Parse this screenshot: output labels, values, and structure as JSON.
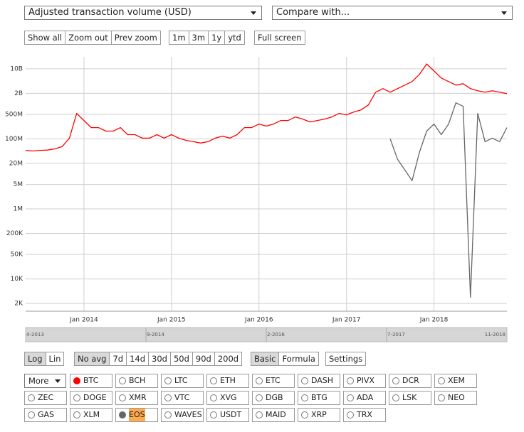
{
  "controls": {
    "metric": "Adjusted transaction volume (USD)",
    "compare": "Compare with...",
    "zoom": [
      "Show all",
      "Zoom out",
      "Prev zoom"
    ],
    "range": [
      "1m",
      "3m",
      "1y",
      "ytd"
    ],
    "fullscreen": "Full screen"
  },
  "chart_data": {
    "type": "line",
    "log_scale": true,
    "grid": true,
    "x": [
      "2013-05",
      "2013-06",
      "2013-07",
      "2013-08",
      "2013-09",
      "2013-10",
      "2013-11",
      "2013-12",
      "2014-01",
      "2014-02",
      "2014-03",
      "2014-04",
      "2014-05",
      "2014-06",
      "2014-07",
      "2014-08",
      "2014-09",
      "2014-10",
      "2014-11",
      "2014-12",
      "2015-01",
      "2015-02",
      "2015-03",
      "2015-04",
      "2015-05",
      "2015-06",
      "2015-07",
      "2015-08",
      "2015-09",
      "2015-10",
      "2015-11",
      "2015-12",
      "2016-01",
      "2016-02",
      "2016-03",
      "2016-04",
      "2016-05",
      "2016-06",
      "2016-07",
      "2016-08",
      "2016-09",
      "2016-10",
      "2016-11",
      "2016-12",
      "2017-01",
      "2017-02",
      "2017-03",
      "2017-04",
      "2017-05",
      "2017-06",
      "2017-07",
      "2017-08",
      "2017-09",
      "2017-10",
      "2017-11",
      "2017-12",
      "2018-01",
      "2018-02",
      "2018-03",
      "2018-04",
      "2018-05",
      "2018-06",
      "2018-07",
      "2018-08",
      "2018-09",
      "2018-10",
      "2018-11"
    ],
    "series": [
      {
        "name": "BTC",
        "color": "#ff0000",
        "values": [
          47000000,
          45000000,
          47000000,
          48000000,
          52000000,
          60000000,
          105000000,
          533000000,
          335000000,
          210000000,
          210000000,
          167000000,
          167000000,
          210000000,
          132000000,
          132000000,
          105000000,
          105000000,
          132000000,
          105000000,
          132000000,
          105000000,
          91000000,
          83000000,
          76000000,
          83000000,
          105000000,
          120000000,
          105000000,
          132000000,
          210000000,
          210000000,
          265000000,
          231000000,
          265000000,
          335000000,
          335000000,
          423000000,
          368000000,
          305000000,
          335000000,
          368000000,
          423000000,
          533000000,
          486000000,
          586000000,
          673000000,
          933000000,
          2150000000,
          2720000000,
          2150000000,
          2720000000,
          3430000000,
          4330000000,
          6900000000,
          13800000000,
          8700000000,
          5460000000,
          4330000000,
          3430000000,
          3770000000,
          2720000000,
          2370000000,
          2150000000,
          2370000000,
          2150000000,
          1960000000
        ]
      },
      {
        "name": "EOS",
        "color": "#666666",
        "values": [
          null,
          null,
          null,
          null,
          null,
          null,
          null,
          null,
          null,
          null,
          null,
          null,
          null,
          null,
          null,
          null,
          null,
          null,
          null,
          null,
          null,
          null,
          null,
          null,
          null,
          null,
          null,
          null,
          null,
          null,
          null,
          null,
          null,
          null,
          null,
          null,
          null,
          null,
          null,
          null,
          null,
          null,
          null,
          null,
          null,
          null,
          null,
          null,
          null,
          null,
          100000000,
          26000000,
          13000000,
          6400000,
          41000000,
          167000000,
          265000000,
          132000000,
          265000000,
          1070000000,
          850000000,
          3000,
          533000000,
          83000000,
          105000000,
          83000000,
          210000000
        ]
      }
    ],
    "xlim": [
      "2013-05",
      "2018-11"
    ],
    "xticks": [
      {
        "value": "2014-01",
        "label": "Jan 2014"
      },
      {
        "value": "2015-01",
        "label": "Jan 2015"
      },
      {
        "value": "2016-01",
        "label": "Jan 2016"
      },
      {
        "value": "2017-01",
        "label": "Jan 2017"
      },
      {
        "value": "2018-01",
        "label": "Jan 2018"
      }
    ],
    "ylim": [
      1200,
      22000000000
    ],
    "yticks": [
      {
        "value": 2000,
        "label": "2K"
      },
      {
        "value": 10000,
        "label": "10K"
      },
      {
        "value": 50000,
        "label": "50K"
      },
      {
        "value": 200000,
        "label": "200K"
      },
      {
        "value": 1000000,
        "label": "1M"
      },
      {
        "value": 5000000,
        "label": "5M"
      },
      {
        "value": 20000000,
        "label": "20M"
      },
      {
        "value": 100000000,
        "label": "100M"
      },
      {
        "value": 500000000,
        "label": "500M"
      },
      {
        "value": 2000000000,
        "label": "2B"
      },
      {
        "value": 10000000000,
        "label": "10B"
      }
    ]
  },
  "navigator": {
    "labels": [
      "4-2013",
      "9-2014",
      "2-2016",
      "7-2017",
      "11-2018"
    ]
  },
  "options": {
    "scale": {
      "buttons": [
        "Log",
        "Lin"
      ],
      "active": 0
    },
    "averaging": {
      "buttons": [
        "No avg",
        "7d",
        "14d",
        "30d",
        "50d",
        "90d",
        "200d"
      ],
      "active": 0
    },
    "mode": {
      "buttons": [
        "Basic",
        "Formula"
      ],
      "active": 0
    },
    "settings": "Settings"
  },
  "coin_grid": {
    "more": "More",
    "coins": [
      {
        "label": "BTC"
      },
      {
        "label": "BCH"
      },
      {
        "label": "LTC"
      },
      {
        "label": "ETH"
      },
      {
        "label": "ETC"
      },
      {
        "label": "DASH"
      },
      {
        "label": "PIVX"
      },
      {
        "label": "DCR"
      },
      {
        "label": "XEM"
      },
      {
        "label": "ZEC"
      },
      {
        "label": "DOGE"
      },
      {
        "label": "XMR"
      },
      {
        "label": "VTC"
      },
      {
        "label": "XVG"
      },
      {
        "label": "DGB"
      },
      {
        "label": "BTG"
      },
      {
        "label": "ADA"
      },
      {
        "label": "LSK"
      },
      {
        "label": "NEO"
      },
      {
        "label": "GAS"
      },
      {
        "label": "XLM"
      },
      {
        "label": "EOS",
        "highlight": true
      },
      {
        "label": "WAVES"
      },
      {
        "label": "USDT"
      },
      {
        "label": "MAID"
      },
      {
        "label": "XRP"
      },
      {
        "label": "TRX"
      }
    ]
  }
}
